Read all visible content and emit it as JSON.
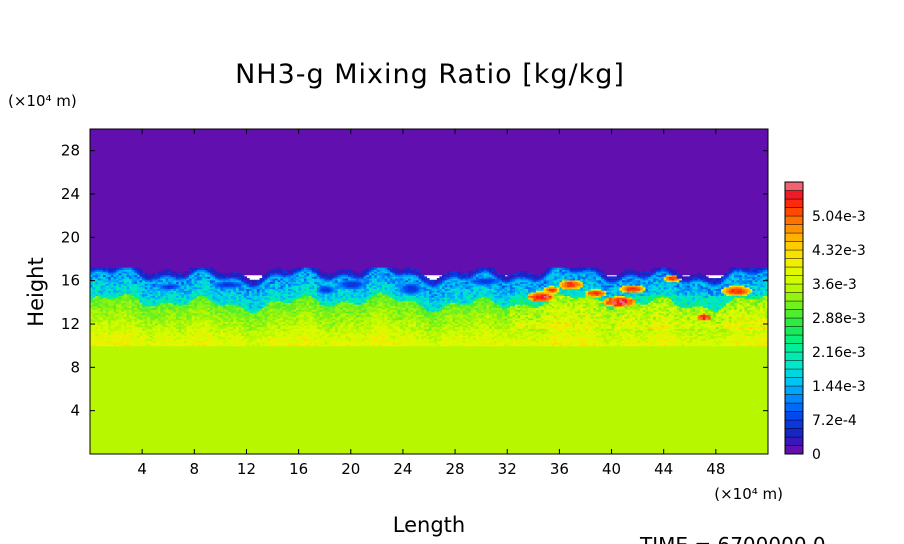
{
  "chart_data": {
    "type": "heatmap",
    "title": "NH3-g Mixing Ratio [kg/kg]",
    "xlabel": "Length",
    "ylabel": "Height",
    "x_units": "(×10⁴ m)",
    "y_units": "(×10⁴ m)",
    "x_range": [
      0,
      52
    ],
    "y_range": [
      0,
      30
    ],
    "x_ticks": [
      {
        "value": 4,
        "label": "4"
      },
      {
        "value": 8,
        "label": "8"
      },
      {
        "value": 12,
        "label": "12"
      },
      {
        "value": 16,
        "label": "16"
      },
      {
        "value": 20,
        "label": "20"
      },
      {
        "value": 24,
        "label": "24"
      },
      {
        "value": 28,
        "label": "28"
      },
      {
        "value": 32,
        "label": "32"
      },
      {
        "value": 36,
        "label": "36"
      },
      {
        "value": 40,
        "label": "40"
      },
      {
        "value": 44,
        "label": "44"
      },
      {
        "value": 48,
        "label": "48"
      }
    ],
    "y_ticks": [
      {
        "value": 4,
        "label": "4"
      },
      {
        "value": 8,
        "label": "8"
      },
      {
        "value": 12,
        "label": "12"
      },
      {
        "value": 16,
        "label": "16"
      },
      {
        "value": 20,
        "label": "20"
      },
      {
        "value": 24,
        "label": "24"
      },
      {
        "value": 28,
        "label": "28"
      }
    ],
    "colorbar": {
      "min": 0,
      "max": 0.00576,
      "step": 0.00018,
      "labels": [
        {
          "value": 0,
          "label": "0"
        },
        {
          "value": 0.00072,
          "label": "7.2e-4"
        },
        {
          "value": 0.00144,
          "label": "1.44e-3"
        },
        {
          "value": 0.00216,
          "label": "2.16e-3"
        },
        {
          "value": 0.00288,
          "label": "2.88e-3"
        },
        {
          "value": 0.0036,
          "label": "3.6e-3"
        },
        {
          "value": 0.00432,
          "label": "4.32e-3"
        },
        {
          "value": 0.00504,
          "label": "5.04e-3"
        }
      ]
    },
    "field_description": {
      "upper_layer": {
        "y_from": 16.5,
        "y_to": 30,
        "value": 0
      },
      "transition_layer": {
        "y_from": 10,
        "y_to": 16.5
      },
      "lower_layer": {
        "y_from": 0,
        "y_to": 10,
        "value": 0.0036
      },
      "grid": false
    },
    "time_label": "TIME  =  6700000.0"
  }
}
